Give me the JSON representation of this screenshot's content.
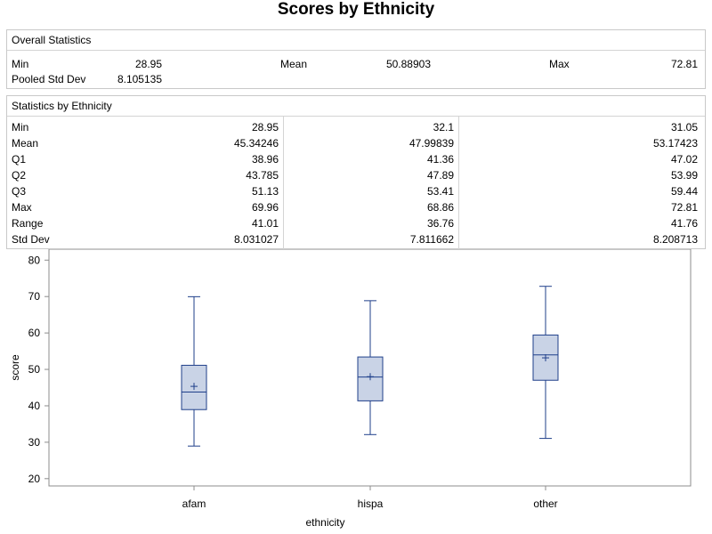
{
  "title": "Scores by Ethnicity",
  "overall": {
    "header": "Overall Statistics",
    "min_label": "Min",
    "min_value": "28.95",
    "mean_label": "Mean",
    "mean_value": "50.88903",
    "max_label": "Max",
    "max_value": "72.81",
    "psd_label": "Pooled Std Dev",
    "psd_value": "8.105135"
  },
  "by_group": {
    "header": "Statistics by Ethnicity",
    "row_labels": [
      "Min",
      "Mean",
      "Q1",
      "Q2",
      "Q3",
      "Max",
      "Range",
      "Std Dev"
    ],
    "columns": [
      [
        "28.95",
        "45.34246",
        "38.96",
        "43.785",
        "51.13",
        "69.96",
        "41.01",
        "8.031027"
      ],
      [
        "32.1",
        "47.99839",
        "41.36",
        "47.89",
        "53.41",
        "68.86",
        "36.76",
        "7.811662"
      ],
      [
        "31.05",
        "53.17423",
        "47.02",
        "53.99",
        "59.44",
        "72.81",
        "41.76",
        "8.208713"
      ]
    ]
  },
  "chart_data": {
    "type": "box",
    "xlabel": "ethnicity",
    "ylabel": "score",
    "ylim": [
      18,
      83
    ],
    "yticks": [
      20,
      30,
      40,
      50,
      60,
      70,
      80
    ],
    "categories": [
      "afam",
      "hispa",
      "other"
    ],
    "boxes": [
      {
        "min": 28.95,
        "q1": 38.96,
        "median": 43.785,
        "q3": 51.13,
        "max": 69.96,
        "mean": 45.34246
      },
      {
        "min": 32.1,
        "q1": 41.36,
        "median": 47.89,
        "q3": 53.41,
        "max": 68.86,
        "mean": 47.99839
      },
      {
        "min": 31.05,
        "q1": 47.02,
        "median": 53.99,
        "q3": 59.44,
        "max": 72.81,
        "mean": 53.17423
      }
    ],
    "colors": {
      "box_fill": "#c9d3e6",
      "box_stroke": "#1f3f8a",
      "axis": "#8c8c8c"
    }
  }
}
